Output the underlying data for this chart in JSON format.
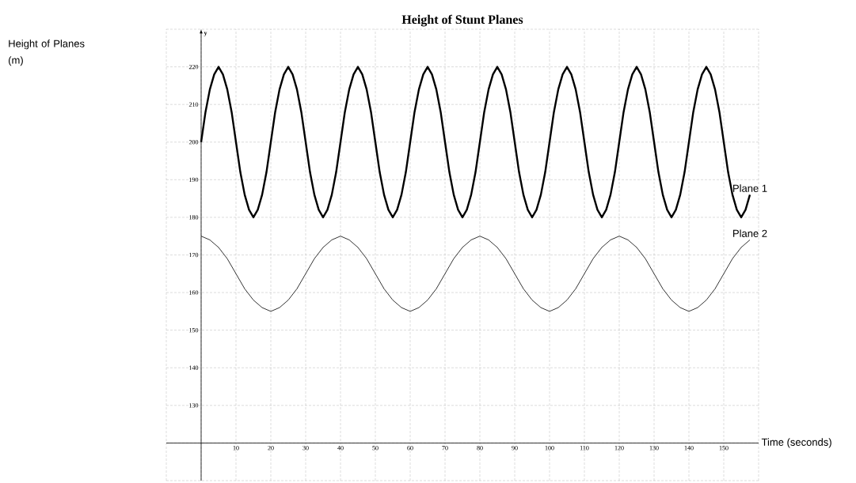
{
  "chart_data": {
    "type": "line",
    "title": "Height of Stunt Planes",
    "xlabel": "Time (seconds)",
    "annotations": [
      "Height of Planes (m)",
      "y"
    ],
    "xlim": [
      -10,
      160
    ],
    "ylim": [
      110,
      230
    ],
    "xticks": [
      {
        "value": -10,
        "label": null
      },
      {
        "value": 0,
        "label": null
      },
      10,
      20,
      30,
      40,
      50,
      60,
      70,
      80,
      90,
      100,
      110,
      120,
      130,
      140,
      150,
      {
        "value": 160,
        "label": null
      }
    ],
    "yticks": [
      {
        "value": 110,
        "label": null
      },
      {
        "value": 120,
        "label": null
      },
      130,
      140,
      150,
      160,
      170,
      180,
      190,
      200,
      210,
      220,
      {
        "value": 230,
        "label": null
      }
    ],
    "grid": true,
    "series": [
      {
        "name": "Plane 1",
        "color": "#000000",
        "x": [
          0,
          1.25,
          2.5,
          3.75,
          5,
          6.25,
          7.5,
          8.75,
          10,
          11.25,
          12.5,
          13.75,
          15,
          16.25,
          17.5,
          18.75,
          20,
          21.25,
          22.5,
          23.75,
          25,
          26.25,
          27.5,
          28.75,
          30,
          31.25,
          32.5,
          33.75,
          35,
          36.25,
          37.5,
          38.75,
          40,
          41.25,
          42.5,
          43.75,
          45,
          46.25,
          47.5,
          48.75,
          50,
          51.25,
          52.5,
          53.75,
          55,
          56.25,
          57.5,
          58.75,
          60,
          61.25,
          62.5,
          63.75,
          65,
          66.25,
          67.5,
          68.75,
          70,
          71.25,
          72.5,
          73.75,
          75,
          76.25,
          77.5,
          78.75,
          80,
          81.25,
          82.5,
          83.75,
          85,
          86.25,
          87.5,
          88.75,
          90,
          91.25,
          92.5,
          93.75,
          95,
          96.25,
          97.5,
          98.75,
          100,
          101.25,
          102.5,
          103.75,
          105,
          106.25,
          107.5,
          108.75,
          110,
          111.25,
          112.5,
          113.75,
          115,
          116.25,
          117.5,
          118.75,
          120,
          121.25,
          122.5,
          123.75,
          125,
          126.25,
          127.5,
          128.75,
          130,
          131.25,
          132.5,
          133.75,
          135,
          136.25,
          137.5,
          138.75,
          140,
          141.25,
          142.5,
          143.75,
          145,
          146.25,
          147.5,
          148.75,
          150,
          151.25,
          152.5,
          153.75,
          155,
          156.25,
          157.5
        ],
        "values": [
          200,
          208,
          214,
          218,
          220,
          218,
          214,
          208,
          200,
          192,
          186,
          182,
          180,
          182,
          186,
          192,
          200,
          208,
          214,
          218,
          220,
          218,
          214,
          208,
          200,
          192,
          186,
          182,
          180,
          182,
          186,
          192,
          200,
          208,
          214,
          218,
          220,
          218,
          214,
          208,
          200,
          192,
          186,
          182,
          180,
          182,
          186,
          192,
          200,
          208,
          214,
          218,
          220,
          218,
          214,
          208,
          200,
          192,
          186,
          182,
          180,
          182,
          186,
          192,
          200,
          208,
          214,
          218,
          220,
          218,
          214,
          208,
          200,
          192,
          186,
          182,
          180,
          182,
          186,
          192,
          200,
          208,
          214,
          218,
          220,
          218,
          214,
          208,
          200,
          192,
          186,
          182,
          180,
          182,
          186,
          192,
          200,
          208,
          214,
          218,
          220,
          218,
          214,
          208,
          200,
          192,
          186,
          182,
          180,
          182,
          186,
          192,
          200,
          208,
          214,
          218,
          220,
          218,
          214,
          208,
          200,
          192,
          186,
          182,
          180,
          182,
          186
        ]
      },
      {
        "name": "Plane 2",
        "color": "#000000",
        "x": [
          0,
          2.5,
          5,
          7.5,
          10,
          12.5,
          15,
          17.5,
          20,
          22.5,
          25,
          27.5,
          30,
          32.5,
          35,
          37.5,
          40,
          42.5,
          45,
          47.5,
          50,
          52.5,
          55,
          57.5,
          60,
          62.5,
          65,
          67.5,
          70,
          72.5,
          75,
          77.5,
          80,
          82.5,
          85,
          87.5,
          90,
          92.5,
          95,
          97.5,
          100,
          102.5,
          105,
          107.5,
          110,
          112.5,
          115,
          117.5,
          120,
          122.5,
          125,
          127.5,
          130,
          132.5,
          135,
          137.5,
          140,
          142.5,
          145,
          147.5,
          150,
          152.5,
          155,
          157.5
        ],
        "values": [
          175,
          174,
          172,
          169,
          165,
          161,
          158,
          156,
          155,
          156,
          158,
          161,
          165,
          169,
          172,
          174,
          175,
          174,
          172,
          169,
          165,
          161,
          158,
          156,
          155,
          156,
          158,
          161,
          165,
          169,
          172,
          174,
          175,
          174,
          172,
          169,
          165,
          161,
          158,
          156,
          155,
          156,
          158,
          161,
          165,
          169,
          172,
          174,
          175,
          174,
          172,
          169,
          165,
          161,
          158,
          156,
          155,
          156,
          158,
          161,
          165,
          169,
          172,
          174
        ]
      }
    ]
  }
}
